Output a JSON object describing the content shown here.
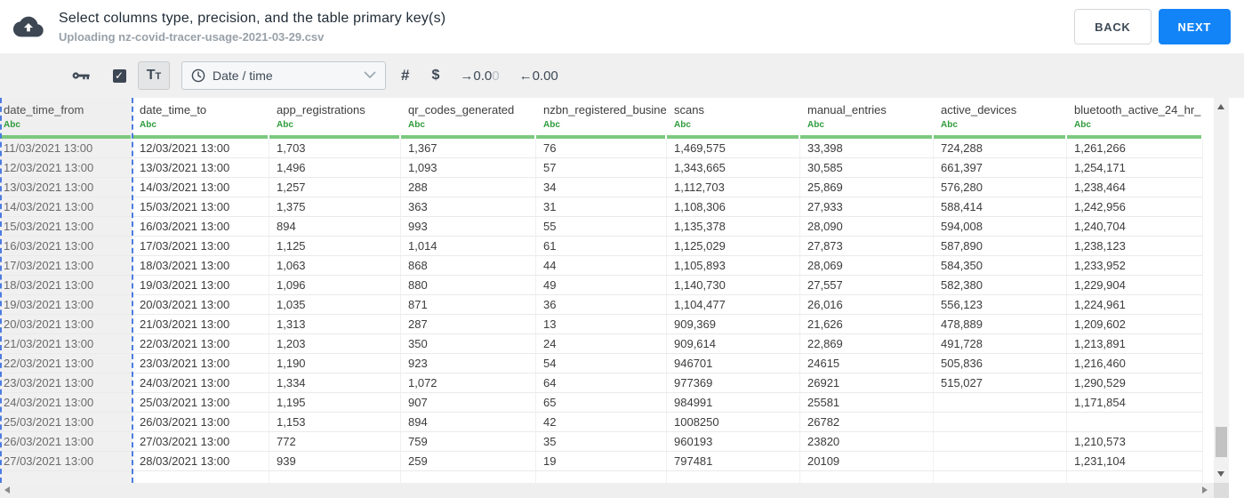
{
  "header": {
    "title": "Select columns type, precision, and the table primary key(s)",
    "subtitle": "Uploading nz-covid-tracer-usage-2021-03-29.csv",
    "back_label": "BACK",
    "next_label": "NEXT"
  },
  "toolbar": {
    "include_checkbox_checked": true,
    "text_type_label": "Tt",
    "type_dropdown_value": "Date / time",
    "number_sign": "#",
    "currency_sign": "$",
    "precision_add": {
      "label": "→0.0",
      "faded": "0"
    },
    "precision_remove": "←0.00"
  },
  "table": {
    "type_label": "Abc",
    "selected_column": "date_time_from",
    "columns": [
      "date_time_from",
      "date_time_to",
      "app_registrations",
      "qr_codes_generated",
      "nzbn_registered_busine",
      "scans",
      "manual_entries",
      "active_devices",
      "bluetooth_active_24_hr_"
    ],
    "rows": [
      [
        "11/03/2021 13:00",
        "12/03/2021 13:00",
        "1,703",
        "1,367",
        "76",
        "1,469,575",
        "33,398",
        "724,288",
        "1,261,266"
      ],
      [
        "12/03/2021 13:00",
        "13/03/2021 13:00",
        "1,496",
        "1,093",
        "57",
        "1,343,665",
        "30,585",
        "661,397",
        "1,254,171"
      ],
      [
        "13/03/2021 13:00",
        "14/03/2021 13:00",
        "1,257",
        "288",
        "34",
        "1,112,703",
        "25,869",
        "576,280",
        "1,238,464"
      ],
      [
        "14/03/2021 13:00",
        "15/03/2021 13:00",
        "1,375",
        "363",
        "31",
        "1,108,306",
        "27,933",
        "588,414",
        "1,242,956"
      ],
      [
        "15/03/2021 13:00",
        "16/03/2021 13:00",
        "894",
        "993",
        "55",
        "1,135,378",
        "28,090",
        "594,008",
        "1,240,704"
      ],
      [
        "16/03/2021 13:00",
        "17/03/2021 13:00",
        "1,125",
        "1,014",
        "61",
        "1,125,029",
        "27,873",
        "587,890",
        "1,238,123"
      ],
      [
        "17/03/2021 13:00",
        "18/03/2021 13:00",
        "1,063",
        "868",
        "44",
        "1,105,893",
        "28,069",
        "584,350",
        "1,233,952"
      ],
      [
        "18/03/2021 13:00",
        "19/03/2021 13:00",
        "1,096",
        "880",
        "49",
        "1,140,730",
        "27,557",
        "582,380",
        "1,229,904"
      ],
      [
        "19/03/2021 13:00",
        "20/03/2021 13:00",
        "1,035",
        "871",
        "36",
        "1,104,477",
        "26,016",
        "556,123",
        "1,224,961"
      ],
      [
        "20/03/2021 13:00",
        "21/03/2021 13:00",
        "1,313",
        "287",
        "13",
        "909,369",
        "21,626",
        "478,889",
        "1,209,602"
      ],
      [
        "21/03/2021 13:00",
        "22/03/2021 13:00",
        "1,203",
        "350",
        "24",
        "909,614",
        "22,869",
        "491,728",
        "1,213,891"
      ],
      [
        "22/03/2021 13:00",
        "23/03/2021 13:00",
        "1,190",
        "923",
        "54",
        "946701",
        "24615",
        "505,836",
        "1,216,460"
      ],
      [
        "23/03/2021 13:00",
        "24/03/2021 13:00",
        "1,334",
        "1,072",
        "64",
        "977369",
        "26921",
        "515,027",
        "1,290,529"
      ],
      [
        "24/03/2021 13:00",
        "25/03/2021 13:00",
        "1,195",
        "907",
        "65",
        "984991",
        "25581",
        "",
        "1,171,854"
      ],
      [
        "25/03/2021 13:00",
        "26/03/2021 13:00",
        "1,153",
        "894",
        "42",
        "1008250",
        "26782",
        "",
        ""
      ],
      [
        "26/03/2021 13:00",
        "27/03/2021 13:00",
        "772",
        "759",
        "35",
        "960193",
        "23820",
        "",
        "1,210,573"
      ],
      [
        "27/03/2021 13:00",
        "28/03/2021 13:00",
        "939",
        "259",
        "19",
        "797481",
        "20109",
        "",
        "1,231,104"
      ]
    ]
  },
  "colors": {
    "accent_blue": "#1384f7",
    "selection_blue": "#4c7ce0",
    "type_green": "#2f9c3c",
    "bar_green": "#7cc97f",
    "toolbar_gray": "#f0f0f1"
  }
}
